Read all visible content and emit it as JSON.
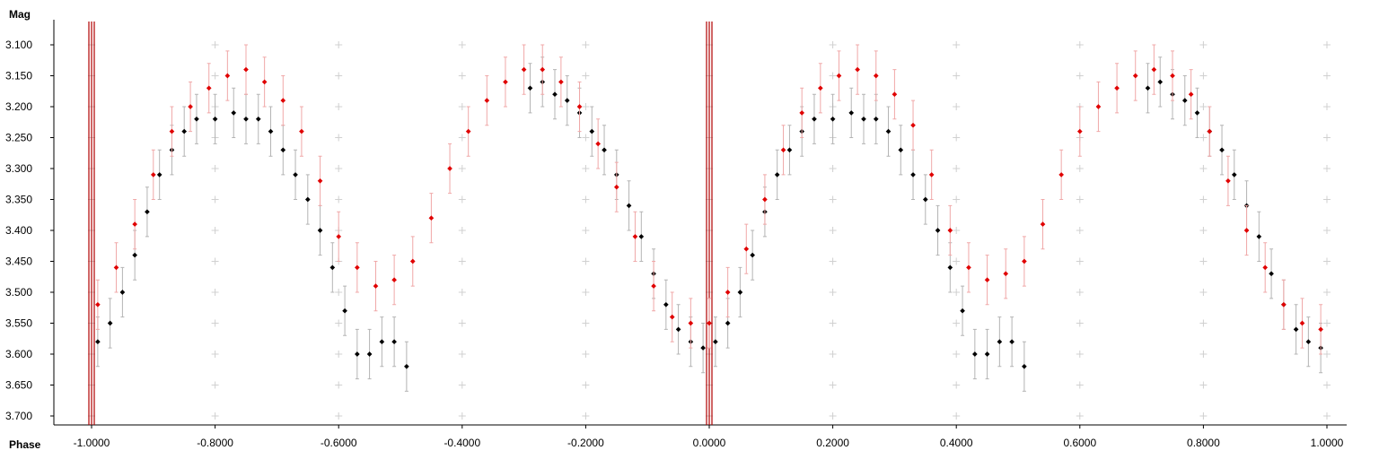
{
  "chart_data": {
    "type": "scatter",
    "title": "",
    "xlabel": "Phase",
    "ylabel": "Mag",
    "xlim": [
      -1.0,
      1.0
    ],
    "ylim": [
      3.1,
      3.7
    ],
    "y_inverted": true,
    "grid": "crosses",
    "x_ticks": [
      "-1.0000",
      "-0.8000",
      "-0.6000",
      "-0.4000",
      "-0.2000",
      "0.0000",
      "0.2000",
      "0.4000",
      "0.6000",
      "0.8000",
      "1.0000"
    ],
    "y_ticks": [
      "3.100",
      "3.150",
      "3.200",
      "3.250",
      "3.300",
      "3.350",
      "3.400",
      "3.450",
      "3.500",
      "3.550",
      "3.600",
      "3.650",
      "3.700"
    ],
    "vertical_lines": [
      -1.0,
      0.0
    ],
    "series": [
      {
        "color": "#000000",
        "errorbar_color": "#b4b4b4",
        "x": [
          -0.99,
          -0.97,
          -0.95,
          -0.93,
          -0.91,
          -0.89,
          -0.87,
          -0.85,
          -0.83,
          -0.8,
          -0.77,
          -0.75,
          -0.73,
          -0.71,
          -0.69,
          -0.67,
          -0.65,
          -0.63,
          -0.61,
          -0.59,
          -0.57,
          -0.55,
          -0.53,
          -0.51,
          -0.49,
          -0.29,
          -0.27,
          -0.25,
          -0.23,
          -0.21,
          -0.19,
          -0.17,
          -0.15,
          -0.13,
          -0.11,
          -0.09,
          -0.07,
          -0.05,
          -0.03,
          -0.01,
          0.01,
          0.03,
          0.05,
          0.07,
          0.09,
          0.11,
          0.13,
          0.15,
          0.17,
          0.2,
          0.23,
          0.25,
          0.27,
          0.29,
          0.31,
          0.33,
          0.35,
          0.37,
          0.39,
          0.41,
          0.43,
          0.45,
          0.47,
          0.49,
          0.51,
          0.71,
          0.73,
          0.75,
          0.77,
          0.79,
          0.81,
          0.83,
          0.85,
          0.87,
          0.89,
          0.91,
          0.93,
          0.95,
          0.97,
          0.99
        ],
        "y": [
          3.58,
          3.55,
          3.5,
          3.44,
          3.37,
          3.31,
          3.27,
          3.24,
          3.22,
          3.22,
          3.21,
          3.22,
          3.22,
          3.24,
          3.27,
          3.31,
          3.35,
          3.4,
          3.46,
          3.53,
          3.6,
          3.6,
          3.58,
          3.58,
          3.62,
          3.17,
          3.16,
          3.18,
          3.19,
          3.21,
          3.24,
          3.27,
          3.31,
          3.36,
          3.41,
          3.47,
          3.52,
          3.56,
          3.58,
          3.59,
          3.58,
          3.55,
          3.5,
          3.44,
          3.37,
          3.31,
          3.27,
          3.24,
          3.22,
          3.22,
          3.21,
          3.22,
          3.22,
          3.24,
          3.27,
          3.31,
          3.35,
          3.4,
          3.46,
          3.53,
          3.6,
          3.6,
          3.58,
          3.58,
          3.62,
          3.17,
          3.16,
          3.18,
          3.19,
          3.21,
          3.24,
          3.27,
          3.31,
          3.36,
          3.41,
          3.47,
          3.52,
          3.56,
          3.58,
          3.59
        ],
        "err": 0.04
      },
      {
        "color": "#e00000",
        "errorbar_color": "#f0a8a8",
        "x": [
          -0.99,
          -0.96,
          -0.93,
          -0.9,
          -0.87,
          -0.84,
          -0.81,
          -0.78,
          -0.75,
          -0.72,
          -0.69,
          -0.66,
          -0.63,
          -0.6,
          -0.57,
          -0.54,
          -0.51,
          -0.48,
          -0.45,
          -0.42,
          -0.39,
          -0.36,
          -0.33,
          -0.3,
          -0.27,
          -0.24,
          -0.21,
          -0.18,
          -0.15,
          -0.12,
          -0.09,
          -0.06,
          -0.03,
          0.0,
          0.03,
          0.06,
          0.09,
          0.12,
          0.15,
          0.18,
          0.21,
          0.24,
          0.27,
          0.3,
          0.33,
          0.36,
          0.39,
          0.42,
          0.45,
          0.48,
          0.51,
          0.54,
          0.57,
          0.6,
          0.63,
          0.66,
          0.69,
          0.72,
          0.75,
          0.78,
          0.81,
          0.84,
          0.87,
          0.9,
          0.93,
          0.96,
          0.99
        ],
        "y": [
          3.52,
          3.46,
          3.39,
          3.31,
          3.24,
          3.2,
          3.17,
          3.15,
          3.14,
          3.16,
          3.19,
          3.24,
          3.32,
          3.41,
          3.46,
          3.49,
          3.48,
          3.45,
          3.38,
          3.3,
          3.24,
          3.19,
          3.16,
          3.14,
          3.14,
          3.16,
          3.2,
          3.26,
          3.33,
          3.41,
          3.49,
          3.54,
          3.55,
          3.55,
          3.5,
          3.43,
          3.35,
          3.27,
          3.21,
          3.17,
          3.15,
          3.14,
          3.15,
          3.18,
          3.23,
          3.31,
          3.4,
          3.46,
          3.48,
          3.47,
          3.45,
          3.39,
          3.31,
          3.24,
          3.2,
          3.17,
          3.15,
          3.14,
          3.15,
          3.18,
          3.24,
          3.32,
          3.4,
          3.46,
          3.52,
          3.55,
          3.56
        ],
        "err": 0.04
      }
    ]
  }
}
